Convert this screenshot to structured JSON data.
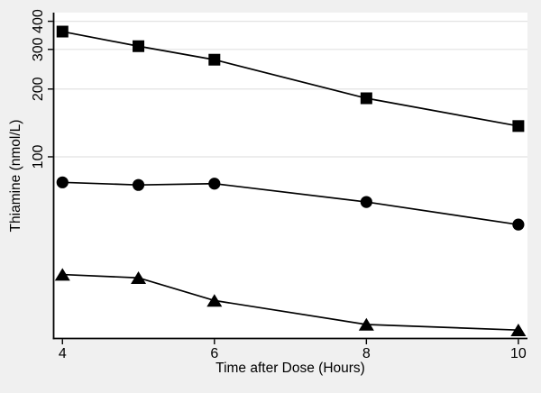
{
  "figure": {
    "background_color": "#f0f0f0",
    "plot_background_color": "#ffffff",
    "grid_color": "#e2e2e2",
    "axis_color": "#000000",
    "series_color": "#000000"
  },
  "chart_data": {
    "type": "line",
    "title": "",
    "xlabel": "Time after Dose (Hours)",
    "ylabel": "Thiamine (nmol/L)",
    "x": [
      4,
      5,
      6,
      8,
      10
    ],
    "x_ticks": [
      4,
      6,
      8,
      10
    ],
    "x_tick_labels": [
      "4",
      "6",
      "8",
      "10"
    ],
    "y_scale": "log",
    "y_ticks": [
      100,
      200,
      300,
      400
    ],
    "y_tick_labels": [
      "100",
      "200",
      "300",
      "400"
    ],
    "xlim": [
      3.89,
      10.12
    ],
    "ylim": [
      15.6,
      437
    ],
    "grid": "horizontal",
    "legend": "none",
    "series": [
      {
        "name": "squares",
        "marker": "square",
        "values": [
          360,
          310,
          270,
          182,
          137
        ]
      },
      {
        "name": "circles",
        "marker": "circle",
        "values": [
          77,
          75,
          76,
          63,
          50
        ]
      },
      {
        "name": "triangles",
        "marker": "triangle",
        "values": [
          30,
          29,
          23,
          18,
          17
        ]
      }
    ]
  }
}
